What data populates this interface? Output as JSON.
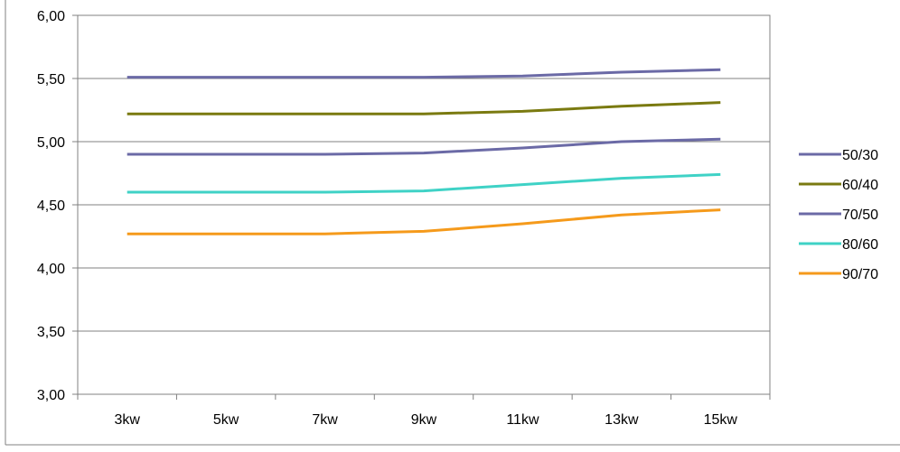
{
  "chart_data": {
    "type": "line",
    "title": "",
    "xlabel": "",
    "ylabel": "",
    "categories": [
      "3kw",
      "5kw",
      "7kw",
      "9kw",
      "11kw",
      "13kw",
      "15kw"
    ],
    "ylim": [
      3.0,
      6.0
    ],
    "yticks": [
      "3,00",
      "3,50",
      "4,00",
      "4,50",
      "5,00",
      "5,50",
      "6,00"
    ],
    "grid": true,
    "legend_position": "right",
    "series": [
      {
        "name": "50/30",
        "color": "#6b6aa6",
        "values": [
          5.51,
          5.51,
          5.51,
          5.51,
          5.52,
          5.55,
          5.57
        ]
      },
      {
        "name": "60/40",
        "color": "#7a7a10",
        "values": [
          5.22,
          5.22,
          5.22,
          5.22,
          5.24,
          5.28,
          5.31
        ]
      },
      {
        "name": "70/50",
        "color": "#6b6aa6",
        "values": [
          4.9,
          4.9,
          4.9,
          4.91,
          4.95,
          5.0,
          5.02
        ]
      },
      {
        "name": "80/60",
        "color": "#3fd2c6",
        "values": [
          4.6,
          4.6,
          4.6,
          4.61,
          4.66,
          4.71,
          4.74
        ]
      },
      {
        "name": "90/70",
        "color": "#f59a1b",
        "values": [
          4.27,
          4.27,
          4.27,
          4.29,
          4.35,
          4.42,
          4.46
        ]
      }
    ]
  }
}
